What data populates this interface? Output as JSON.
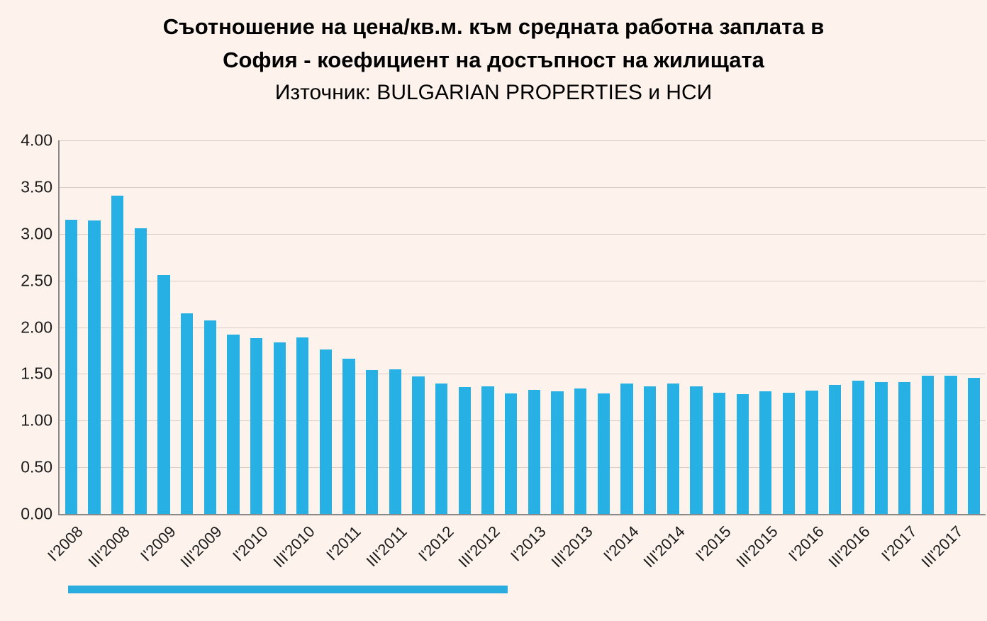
{
  "title": {
    "line1": "Съотношение на цена/кв.м. към средната работна заплата в",
    "line2": "София - коефициент на достъпност на жилищата",
    "source": "Източник: BULGARIAN PROPERTIES и НСИ"
  },
  "chart_data": {
    "type": "bar",
    "title": "Съотношение на цена/кв.м. към средната работна заплата в София - коефициент на достъпност на жилищата",
    "subtitle": "Източник: BULGARIAN PROPERTIES и НСИ",
    "xlabel": "",
    "ylabel": "",
    "ylim": [
      0,
      4
    ],
    "y_tick_step": 0.5,
    "y_tick_labels": [
      "4.00",
      "3.50",
      "3.00",
      "2.50",
      "2.00",
      "1.50",
      "1.00",
      "0.50",
      "0.00"
    ],
    "x_tick_every": 2,
    "x_tick_labels": [
      "I'2008",
      "III'2008",
      "I'2009",
      "III'2009",
      "I'2010",
      "III'2010",
      "I'2011",
      "III'2011",
      "I'2012",
      "III'2012",
      "I'2013",
      "III'2013",
      "I'2014",
      "III'2014",
      "I'2015",
      "III'2015",
      "I'2016",
      "III'2016",
      "I'2017",
      "III'2017"
    ],
    "categories": [
      "I'2008",
      "II'2008",
      "III'2008",
      "IV'2008",
      "I'2009",
      "II'2009",
      "III'2009",
      "IV'2009",
      "I'2010",
      "II'2010",
      "III'2010",
      "IV'2010",
      "I'2011",
      "II'2011",
      "III'2011",
      "IV'2011",
      "I'2012",
      "II'2012",
      "III'2012",
      "IV'2012",
      "I'2013",
      "II'2013",
      "III'2013",
      "IV'2013",
      "I'2014",
      "II'2014",
      "III'2014",
      "IV'2014",
      "I'2015",
      "II'2015",
      "III'2015",
      "IV'2015",
      "I'2016",
      "II'2016",
      "III'2016",
      "IV'2016",
      "I'2017",
      "II'2017",
      "III'2017",
      "IV'2017"
    ],
    "values": [
      3.15,
      3.14,
      3.41,
      3.06,
      2.56,
      2.15,
      2.07,
      1.92,
      1.88,
      1.84,
      1.89,
      1.76,
      1.66,
      1.54,
      1.55,
      1.47,
      1.4,
      1.36,
      1.37,
      1.29,
      1.33,
      1.31,
      1.34,
      1.29,
      1.4,
      1.37,
      1.4,
      1.37,
      1.3,
      1.28,
      1.31,
      1.3,
      1.32,
      1.38,
      1.43,
      1.41,
      1.41,
      1.48,
      1.48,
      1.46
    ],
    "grid": true,
    "legend": "none",
    "bar_color": "#26b0e4",
    "background_color": "#fdf3ec",
    "gridline_color": "#dacec4",
    "axis_color": "#898989"
  },
  "scrollbar": {
    "color": "#2bacdf"
  }
}
